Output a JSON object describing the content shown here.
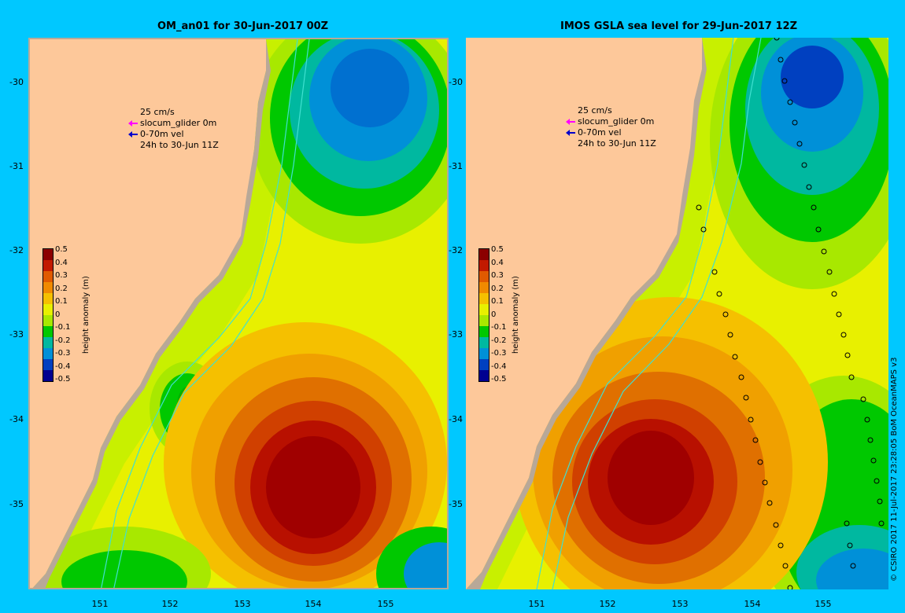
{
  "left_panel": {
    "title": "OM_an01 for 30-Jun-2017 00Z",
    "legend": [
      "25 cm/s",
      "slocum_glider 0m",
      "0-70m vel",
      "24h to 30-Jun 11Z"
    ]
  },
  "right_panel": {
    "title": "IMOS GSLA sea level  for 29-Jun-2017 12Z",
    "legend": [
      "25 cm/s",
      "slocum_glider 0m",
      "0-70m vel",
      "24h to 30-Jun 11Z"
    ]
  },
  "colorbar": {
    "title": "height anomaly (m)",
    "ticks": [
      "0.5",
      "0.4",
      "0.3",
      "0.2",
      "0.1",
      "0",
      "-0.1",
      "-0.2",
      "-0.3",
      "-0.4",
      "-0.5"
    ],
    "colors": [
      "#8b0000",
      "#c21a00",
      "#e05a00",
      "#f08a00",
      "#f5c000",
      "#e8f000",
      "#a8e800",
      "#00c800",
      "#00b8a0",
      "#0090d8",
      "#0040c0",
      "#000090"
    ]
  },
  "y_axis": [
    "-30",
    "-31",
    "-32",
    "-33",
    "-34",
    "-35"
  ],
  "x_axis_left": [
    "151",
    "152",
    "153",
    "154",
    "155"
  ],
  "x_axis_right": [
    "151",
    "152",
    "153",
    "154",
    "155"
  ],
  "credit": "© CSIRO 2017   11-Jul-2017 23:28:05 BoM OceanMAPS v3",
  "colors": {
    "background": "#00c8ff",
    "land": "#fdc89a",
    "legend_arrow_glider": "#ff00ff",
    "legend_arrow_vel": "#0000cc"
  }
}
